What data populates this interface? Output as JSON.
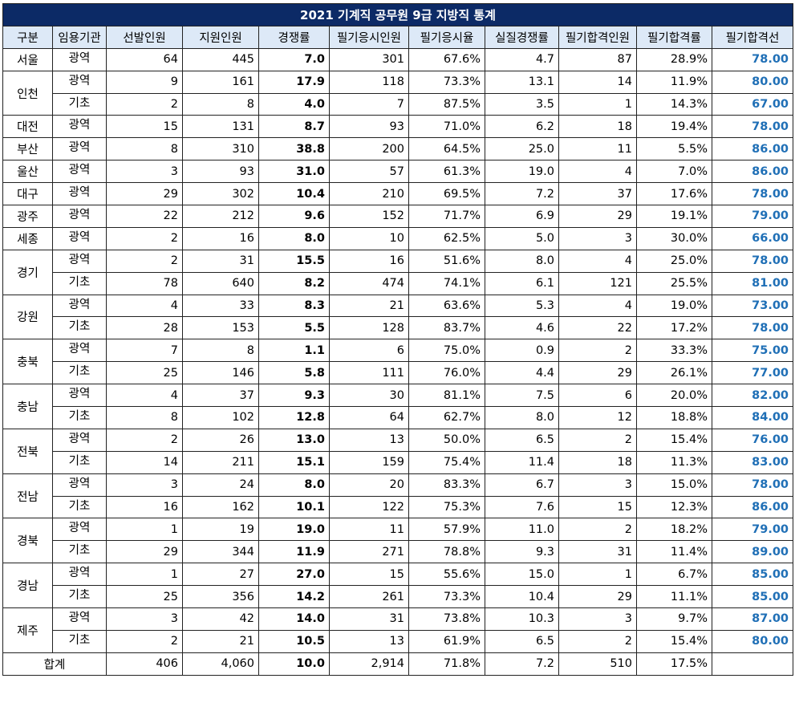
{
  "title": "2021 기계직 공무원 9급 지방직 통계",
  "headers": [
    "구분",
    "임용기관",
    "선발인원",
    "지원인원",
    "경쟁률",
    "필기응시인원",
    "필기응시율",
    "실질경쟁률",
    "필기합격인원",
    "필기합격률",
    "필기합격선"
  ],
  "regions": [
    {
      "name": "서울",
      "rows": [
        {
          "agency": "광역",
          "selected": "64",
          "applied": "445",
          "rate": "7.0",
          "exam_takers": "301",
          "exam_rate": "67.6%",
          "real_rate": "4.7",
          "passed": "87",
          "pass_rate": "28.9%",
          "cutoff": "78.00"
        }
      ]
    },
    {
      "name": "인천",
      "rows": [
        {
          "agency": "광역",
          "selected": "9",
          "applied": "161",
          "rate": "17.9",
          "exam_takers": "118",
          "exam_rate": "73.3%",
          "real_rate": "13.1",
          "passed": "14",
          "pass_rate": "11.9%",
          "cutoff": "80.00"
        },
        {
          "agency": "기초",
          "selected": "2",
          "applied": "8",
          "rate": "4.0",
          "exam_takers": "7",
          "exam_rate": "87.5%",
          "real_rate": "3.5",
          "passed": "1",
          "pass_rate": "14.3%",
          "cutoff": "67.00"
        }
      ]
    },
    {
      "name": "대전",
      "rows": [
        {
          "agency": "광역",
          "selected": "15",
          "applied": "131",
          "rate": "8.7",
          "exam_takers": "93",
          "exam_rate": "71.0%",
          "real_rate": "6.2",
          "passed": "18",
          "pass_rate": "19.4%",
          "cutoff": "78.00"
        }
      ]
    },
    {
      "name": "부산",
      "rows": [
        {
          "agency": "광역",
          "selected": "8",
          "applied": "310",
          "rate": "38.8",
          "exam_takers": "200",
          "exam_rate": "64.5%",
          "real_rate": "25.0",
          "passed": "11",
          "pass_rate": "5.5%",
          "cutoff": "86.00"
        }
      ]
    },
    {
      "name": "울산",
      "rows": [
        {
          "agency": "광역",
          "selected": "3",
          "applied": "93",
          "rate": "31.0",
          "exam_takers": "57",
          "exam_rate": "61.3%",
          "real_rate": "19.0",
          "passed": "4",
          "pass_rate": "7.0%",
          "cutoff": "86.00"
        }
      ]
    },
    {
      "name": "대구",
      "rows": [
        {
          "agency": "광역",
          "selected": "29",
          "applied": "302",
          "rate": "10.4",
          "exam_takers": "210",
          "exam_rate": "69.5%",
          "real_rate": "7.2",
          "passed": "37",
          "pass_rate": "17.6%",
          "cutoff": "78.00"
        }
      ]
    },
    {
      "name": "광주",
      "rows": [
        {
          "agency": "광역",
          "selected": "22",
          "applied": "212",
          "rate": "9.6",
          "exam_takers": "152",
          "exam_rate": "71.7%",
          "real_rate": "6.9",
          "passed": "29",
          "pass_rate": "19.1%",
          "cutoff": "79.00"
        }
      ]
    },
    {
      "name": "세종",
      "rows": [
        {
          "agency": "광역",
          "selected": "2",
          "applied": "16",
          "rate": "8.0",
          "exam_takers": "10",
          "exam_rate": "62.5%",
          "real_rate": "5.0",
          "passed": "3",
          "pass_rate": "30.0%",
          "cutoff": "66.00"
        }
      ]
    },
    {
      "name": "경기",
      "rows": [
        {
          "agency": "광역",
          "selected": "2",
          "applied": "31",
          "rate": "15.5",
          "exam_takers": "16",
          "exam_rate": "51.6%",
          "real_rate": "8.0",
          "passed": "4",
          "pass_rate": "25.0%",
          "cutoff": "78.00"
        },
        {
          "agency": "기초",
          "selected": "78",
          "applied": "640",
          "rate": "8.2",
          "exam_takers": "474",
          "exam_rate": "74.1%",
          "real_rate": "6.1",
          "passed": "121",
          "pass_rate": "25.5%",
          "cutoff": "81.00"
        }
      ]
    },
    {
      "name": "강원",
      "rows": [
        {
          "agency": "광역",
          "selected": "4",
          "applied": "33",
          "rate": "8.3",
          "exam_takers": "21",
          "exam_rate": "63.6%",
          "real_rate": "5.3",
          "passed": "4",
          "pass_rate": "19.0%",
          "cutoff": "73.00"
        },
        {
          "agency": "기초",
          "selected": "28",
          "applied": "153",
          "rate": "5.5",
          "exam_takers": "128",
          "exam_rate": "83.7%",
          "real_rate": "4.6",
          "passed": "22",
          "pass_rate": "17.2%",
          "cutoff": "78.00"
        }
      ]
    },
    {
      "name": "충북",
      "rows": [
        {
          "agency": "광역",
          "selected": "7",
          "applied": "8",
          "rate": "1.1",
          "exam_takers": "6",
          "exam_rate": "75.0%",
          "real_rate": "0.9",
          "passed": "2",
          "pass_rate": "33.3%",
          "cutoff": "75.00"
        },
        {
          "agency": "기초",
          "selected": "25",
          "applied": "146",
          "rate": "5.8",
          "exam_takers": "111",
          "exam_rate": "76.0%",
          "real_rate": "4.4",
          "passed": "29",
          "pass_rate": "26.1%",
          "cutoff": "77.00"
        }
      ]
    },
    {
      "name": "충남",
      "rows": [
        {
          "agency": "광역",
          "selected": "4",
          "applied": "37",
          "rate": "9.3",
          "exam_takers": "30",
          "exam_rate": "81.1%",
          "real_rate": "7.5",
          "passed": "6",
          "pass_rate": "20.0%",
          "cutoff": "82.00"
        },
        {
          "agency": "기초",
          "selected": "8",
          "applied": "102",
          "rate": "12.8",
          "exam_takers": "64",
          "exam_rate": "62.7%",
          "real_rate": "8.0",
          "passed": "12",
          "pass_rate": "18.8%",
          "cutoff": "84.00"
        }
      ]
    },
    {
      "name": "전북",
      "rows": [
        {
          "agency": "광역",
          "selected": "2",
          "applied": "26",
          "rate": "13.0",
          "exam_takers": "13",
          "exam_rate": "50.0%",
          "real_rate": "6.5",
          "passed": "2",
          "pass_rate": "15.4%",
          "cutoff": "76.00"
        },
        {
          "agency": "기초",
          "selected": "14",
          "applied": "211",
          "rate": "15.1",
          "exam_takers": "159",
          "exam_rate": "75.4%",
          "real_rate": "11.4",
          "passed": "18",
          "pass_rate": "11.3%",
          "cutoff": "83.00"
        }
      ]
    },
    {
      "name": "전남",
      "rows": [
        {
          "agency": "광역",
          "selected": "3",
          "applied": "24",
          "rate": "8.0",
          "exam_takers": "20",
          "exam_rate": "83.3%",
          "real_rate": "6.7",
          "passed": "3",
          "pass_rate": "15.0%",
          "cutoff": "78.00"
        },
        {
          "agency": "기초",
          "selected": "16",
          "applied": "162",
          "rate": "10.1",
          "exam_takers": "122",
          "exam_rate": "75.3%",
          "real_rate": "7.6",
          "passed": "15",
          "pass_rate": "12.3%",
          "cutoff": "86.00"
        }
      ]
    },
    {
      "name": "경북",
      "rows": [
        {
          "agency": "광역",
          "selected": "1",
          "applied": "19",
          "rate": "19.0",
          "exam_takers": "11",
          "exam_rate": "57.9%",
          "real_rate": "11.0",
          "passed": "2",
          "pass_rate": "18.2%",
          "cutoff": "79.00"
        },
        {
          "agency": "기초",
          "selected": "29",
          "applied": "344",
          "rate": "11.9",
          "exam_takers": "271",
          "exam_rate": "78.8%",
          "real_rate": "9.3",
          "passed": "31",
          "pass_rate": "11.4%",
          "cutoff": "89.00"
        }
      ]
    },
    {
      "name": "경남",
      "rows": [
        {
          "agency": "광역",
          "selected": "1",
          "applied": "27",
          "rate": "27.0",
          "exam_takers": "15",
          "exam_rate": "55.6%",
          "real_rate": "15.0",
          "passed": "1",
          "pass_rate": "6.7%",
          "cutoff": "85.00"
        },
        {
          "agency": "기초",
          "selected": "25",
          "applied": "356",
          "rate": "14.2",
          "exam_takers": "261",
          "exam_rate": "73.3%",
          "real_rate": "10.4",
          "passed": "29",
          "pass_rate": "11.1%",
          "cutoff": "85.00"
        }
      ]
    },
    {
      "name": "제주",
      "rows": [
        {
          "agency": "광역",
          "selected": "3",
          "applied": "42",
          "rate": "14.0",
          "exam_takers": "31",
          "exam_rate": "73.8%",
          "real_rate": "10.3",
          "passed": "3",
          "pass_rate": "9.7%",
          "cutoff": "87.00"
        },
        {
          "agency": "기초",
          "selected": "2",
          "applied": "21",
          "rate": "10.5",
          "exam_takers": "13",
          "exam_rate": "61.9%",
          "real_rate": "6.5",
          "passed": "2",
          "pass_rate": "15.4%",
          "cutoff": "80.00"
        }
      ]
    }
  ],
  "total": {
    "label": "합계",
    "selected": "406",
    "applied": "4,060",
    "rate": "10.0",
    "exam_takers": "2,914",
    "exam_rate": "71.8%",
    "real_rate": "7.2",
    "passed": "510",
    "pass_rate": "17.5%",
    "cutoff": ""
  },
  "colors": {
    "title_bg": "#0c2a66",
    "header_bg": "#dde9f7",
    "cutoff_text": "#1f6fb6"
  }
}
